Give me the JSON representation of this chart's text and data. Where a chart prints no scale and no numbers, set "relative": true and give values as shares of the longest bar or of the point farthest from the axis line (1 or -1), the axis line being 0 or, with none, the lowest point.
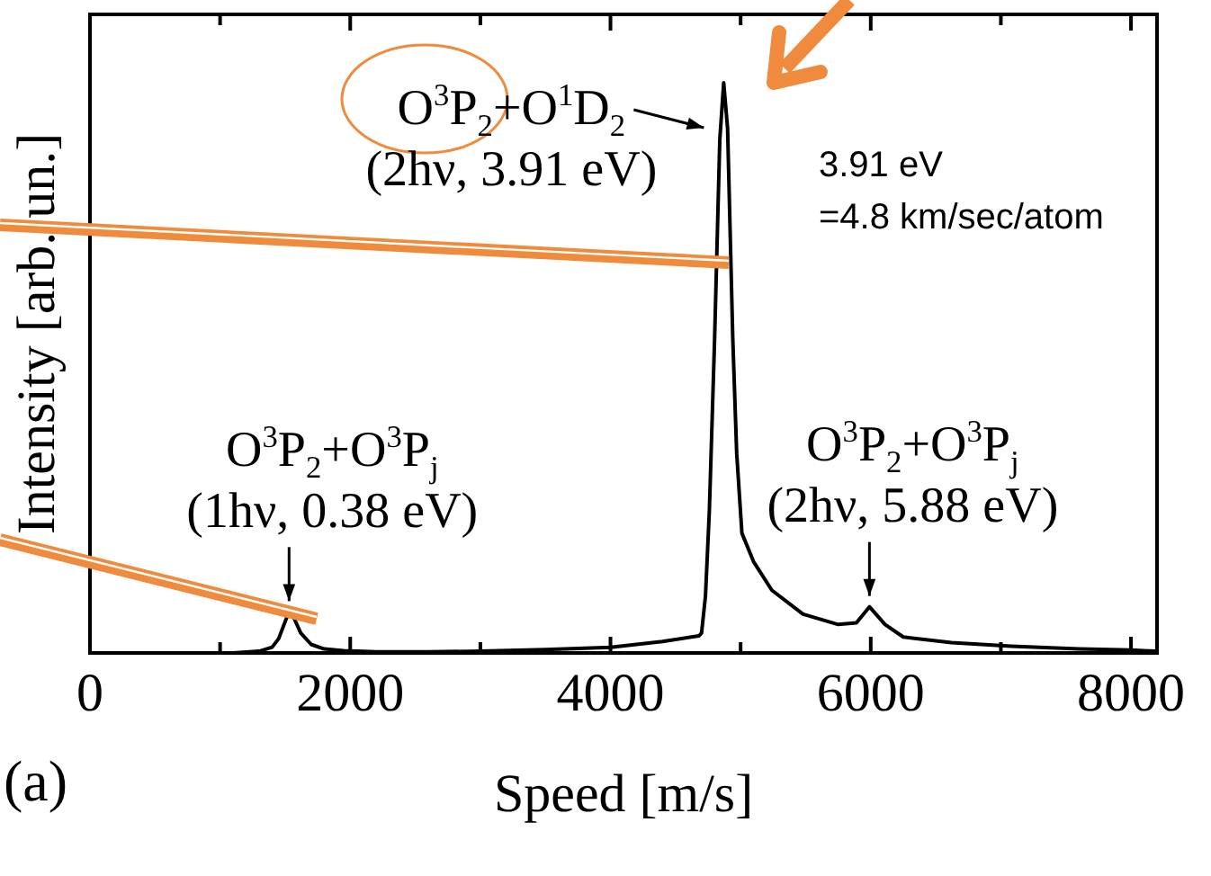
{
  "chart_data": {
    "type": "line",
    "xlabel": "Speed [m/s]",
    "ylabel": "Intensity [arb. un.]",
    "relative": true,
    "color": "#000000",
    "marker": "none",
    "grid": false,
    "legend": false,
    "xlim": [
      0,
      8200
    ],
    "xticks": [
      0,
      {
        "value": 1000,
        "label": null
      },
      2000,
      {
        "value": 3000,
        "label": null
      },
      4000,
      {
        "value": 5000,
        "label": null
      },
      6000,
      {
        "value": 7000,
        "label": null
      },
      8000
    ],
    "x": [
      1100,
      1300,
      1400,
      1450,
      1500,
      1530,
      1570,
      1620,
      1700,
      1800,
      1950,
      2200,
      2600,
      3000,
      3500,
      4000,
      4400,
      4680,
      4700,
      4730,
      4760,
      4800,
      4840,
      4870,
      4900,
      4940,
      4970,
      5010,
      5100,
      5240,
      5480,
      5750,
      5890,
      5990,
      6110,
      6250,
      6620,
      7080,
      7600,
      8000,
      8200
    ],
    "values": [
      0,
      0.003,
      0.01,
      0.025,
      0.055,
      0.072,
      0.06,
      0.035,
      0.015,
      0.007,
      0.004,
      0.002,
      0.002,
      0.003,
      0.006,
      0.01,
      0.02,
      0.03,
      0.035,
      0.1,
      0.25,
      0.55,
      0.9,
      1,
      0.92,
      0.55,
      0.35,
      0.21,
      0.16,
      0.11,
      0.068,
      0.05,
      0.053,
      0.081,
      0.05,
      0.028,
      0.018,
      0.012,
      0.007,
      0.005,
      0.003
    ],
    "annotations": [
      {
        "text": "O$^{3}$P$_{2}$+O$^{1}$D$_{2}$",
        "x": 4870,
        "y": 1
      },
      {
        "text": "(2hν, 3.91 eV)",
        "x": 4870,
        "y": 1
      },
      {
        "text": "O$^{3}$P$_{2}$+O$^{3}$P$_{j}$",
        "x": 1530,
        "y": 0.072
      },
      {
        "text": "(1hν, 0.38 eV)",
        "x": 1530,
        "y": 0.072
      },
      {
        "text": "O$^{3}$P$_{2}$+O$^{3}$P$_{j}$",
        "x": 5990,
        "y": 0.081
      },
      {
        "text": "(2hν, 5.88 eV)",
        "x": 5990,
        "y": 0.081
      },
      "3.91 eV\n=4.8 km/sec/atom",
      "(a)"
    ]
  }
}
